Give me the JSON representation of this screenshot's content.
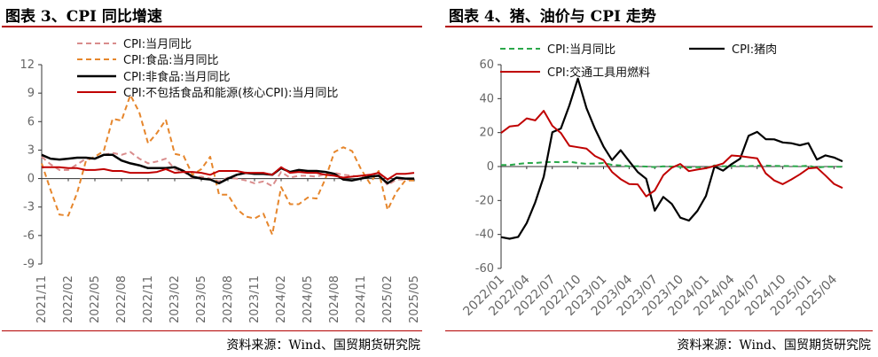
{
  "charts": [
    {
      "title": "图表 3、CPI 同比增速",
      "source": "资料来源：Wind、国贸期货研究院"
    },
    {
      "title": "图表 4、猪、油价与 CPI 走势",
      "source": "资料来源：Wind、国贸期货研究院"
    }
  ],
  "chart_data": [
    {
      "type": "line",
      "title": "图表 3、CPI 同比增速",
      "xlabel": "",
      "ylabel": "",
      "ylim": [
        -9,
        12
      ],
      "yticks": [
        12,
        9,
        6,
        3,
        0,
        -3,
        -6,
        -9
      ],
      "xticks": [
        "2021/11",
        "2022/02",
        "2022/05",
        "2022/08",
        "2022/11",
        "2023/02",
        "2023/05",
        "2023/08",
        "2023/11",
        "2024/02",
        "2024/05",
        "2024/08",
        "2024/11",
        "2025/02",
        "2025/05"
      ],
      "x": [
        "2021/11",
        "2021/12",
        "2022/01",
        "2022/02",
        "2022/03",
        "2022/04",
        "2022/05",
        "2022/06",
        "2022/07",
        "2022/08",
        "2022/09",
        "2022/10",
        "2022/11",
        "2022/12",
        "2023/01",
        "2023/02",
        "2023/03",
        "2023/04",
        "2023/05",
        "2023/06",
        "2023/07",
        "2023/08",
        "2023/09",
        "2023/10",
        "2023/11",
        "2023/12",
        "2024/01",
        "2024/02",
        "2024/03",
        "2024/04",
        "2024/05",
        "2024/06",
        "2024/07",
        "2024/08",
        "2024/09",
        "2024/10",
        "2024/11",
        "2024/12",
        "2025/01",
        "2025/02",
        "2025/03",
        "2025/04",
        "2025/05"
      ],
      "legend_position": "top",
      "series": [
        {
          "name": "CPI:当月同比",
          "color": "#d98c8c",
          "dash": "dashed",
          "values": [
            2.3,
            1.5,
            0.9,
            0.9,
            1.5,
            2.1,
            2.1,
            2.5,
            2.7,
            2.5,
            2.8,
            2.1,
            1.6,
            1.8,
            2.1,
            1.0,
            0.7,
            0.1,
            0.2,
            0.0,
            -0.3,
            0.1,
            0.0,
            -0.2,
            -0.5,
            -0.3,
            -0.8,
            0.7,
            0.1,
            0.3,
            0.3,
            0.2,
            0.5,
            0.6,
            0.4,
            0.3,
            0.2,
            0.1,
            0.5,
            -0.7,
            -0.1,
            -0.1,
            -0.1
          ]
        },
        {
          "name": "CPI:食品:当月同比",
          "color": "#e6862c",
          "dash": "dashed",
          "values": [
            1.6,
            -1.2,
            -3.8,
            -3.9,
            -1.5,
            1.9,
            2.3,
            2.9,
            6.3,
            6.1,
            8.8,
            7.0,
            3.7,
            4.8,
            6.2,
            2.6,
            2.4,
            0.4,
            1.0,
            2.3,
            -1.7,
            -1.7,
            -3.2,
            -4.0,
            -4.2,
            -3.7,
            -5.9,
            -0.9,
            -2.7,
            -2.7,
            -2.0,
            -2.1,
            0.0,
            2.8,
            3.3,
            2.9,
            1.0,
            -0.5,
            0.8,
            -3.3,
            -1.4,
            -0.2,
            -0.2
          ]
        },
        {
          "name": "CPI:非食品:当月同比",
          "color": "#000000",
          "dash": "solid",
          "values": [
            2.5,
            2.1,
            2.0,
            2.1,
            2.2,
            2.2,
            2.1,
            2.5,
            2.5,
            1.9,
            1.6,
            1.4,
            1.1,
            1.1,
            1.1,
            1.2,
            0.8,
            0.2,
            0.0,
            -0.1,
            -0.5,
            0.0,
            0.4,
            0.6,
            0.5,
            0.5,
            0.4,
            1.1,
            0.7,
            0.9,
            0.8,
            0.8,
            0.7,
            0.5,
            -0.1,
            -0.2,
            0.0,
            0.2,
            0.3,
            -0.5,
            0.1,
            0.0,
            0.0
          ]
        },
        {
          "name": "CPI:不包括食品和能源(核心CPI):当月同比",
          "color": "#c00000",
          "dash": "solid",
          "values": [
            1.2,
            1.2,
            1.2,
            1.1,
            1.1,
            0.9,
            0.9,
            1.0,
            0.8,
            0.8,
            0.6,
            0.6,
            0.6,
            0.7,
            1.0,
            0.6,
            0.7,
            0.7,
            0.6,
            0.4,
            0.8,
            0.8,
            0.8,
            0.6,
            0.6,
            0.6,
            0.4,
            1.2,
            0.6,
            0.7,
            0.6,
            0.6,
            0.4,
            0.3,
            0.1,
            0.2,
            0.3,
            0.4,
            0.6,
            -0.1,
            0.5,
            0.5,
            0.6
          ]
        }
      ]
    },
    {
      "type": "line",
      "title": "图表 4、猪、油价与 CPI 走势",
      "xlabel": "",
      "ylabel": "",
      "ylim": [
        -60,
        60
      ],
      "yticks": [
        60,
        40,
        20,
        0,
        -20,
        -40,
        -60
      ],
      "xticks": [
        "2022/01",
        "2022/04",
        "2022/07",
        "2022/10",
        "2023/01",
        "2023/04",
        "2023/07",
        "2023/10",
        "2024/01",
        "2024/04",
        "2024/07",
        "2024/10",
        "2025/01",
        "2025/04"
      ],
      "x": [
        "2022/01",
        "2022/02",
        "2022/03",
        "2022/04",
        "2022/05",
        "2022/06",
        "2022/07",
        "2022/08",
        "2022/09",
        "2022/10",
        "2022/11",
        "2022/12",
        "2023/01",
        "2023/02",
        "2023/03",
        "2023/04",
        "2023/05",
        "2023/06",
        "2023/07",
        "2023/08",
        "2023/09",
        "2023/10",
        "2023/11",
        "2023/12",
        "2024/01",
        "2024/02",
        "2024/03",
        "2024/04",
        "2024/05",
        "2024/06",
        "2024/07",
        "2024/08",
        "2024/09",
        "2024/10",
        "2024/11",
        "2024/12",
        "2025/01",
        "2025/02",
        "2025/03",
        "2025/04",
        "2025/05"
      ],
      "legend_position": "top",
      "series": [
        {
          "name": "CPI:当月同比",
          "color": "#2aa84a",
          "dash": "dashed",
          "values": [
            0.9,
            0.9,
            1.5,
            2.1,
            2.1,
            2.5,
            2.7,
            2.5,
            2.8,
            2.1,
            1.6,
            1.8,
            2.1,
            1.0,
            0.7,
            0.1,
            0.2,
            0.0,
            -0.3,
            0.1,
            0.0,
            -0.2,
            -0.5,
            -0.3,
            -0.8,
            0.7,
            0.1,
            0.3,
            0.3,
            0.2,
            0.5,
            0.6,
            0.4,
            0.3,
            0.2,
            0.1,
            0.5,
            -0.7,
            -0.1,
            -0.1,
            -0.1
          ]
        },
        {
          "name": "CPI:猪肉",
          "color": "#000000",
          "dash": "solid",
          "values": [
            -41.6,
            -42.5,
            -41.4,
            -33.3,
            -21.1,
            -6.0,
            20.2,
            22.4,
            36.0,
            51.8,
            34.4,
            22.2,
            11.8,
            3.8,
            9.6,
            3.2,
            -3.2,
            -7.2,
            -26.0,
            -17.9,
            -22.0,
            -30.1,
            -31.8,
            -26.1,
            -17.3,
            0.0,
            -2.4,
            1.4,
            4.6,
            18.1,
            20.4,
            16.1,
            16.0,
            14.2,
            13.7,
            12.5,
            13.8,
            4.1,
            6.6,
            5.3,
            3.1
          ]
        },
        {
          "name": "CPI:交通工具用燃料",
          "color": "#c00000",
          "dash": "solid",
          "values": [
            19.8,
            23.6,
            24.2,
            28.4,
            27.2,
            32.8,
            24.0,
            19.8,
            12.2,
            11.4,
            10.6,
            6.2,
            3.8,
            -3.2,
            -7.4,
            -10.3,
            -10.5,
            -17.6,
            -14.1,
            -5.1,
            -0.7,
            1.5,
            -2.7,
            -1.8,
            -1.0,
            0.3,
            1.8,
            6.5,
            6.1,
            5.5,
            4.8,
            -4.0,
            -8.2,
            -10.4,
            -7.6,
            -4.6,
            -1.1,
            -0.6,
            -5.3,
            -10.2,
            -12.6
          ]
        }
      ]
    }
  ]
}
